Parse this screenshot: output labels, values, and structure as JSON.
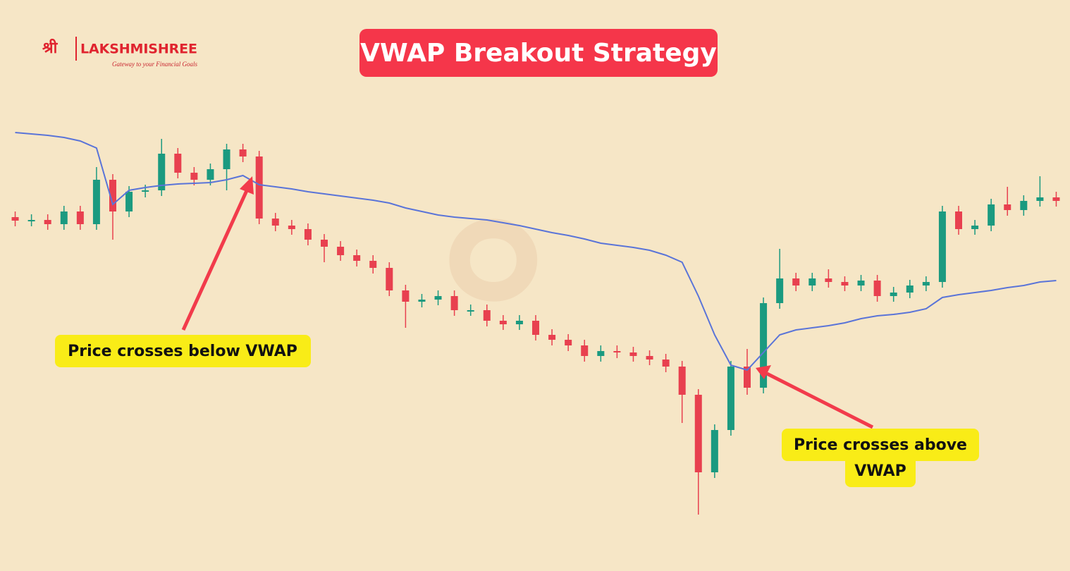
{
  "logo": {
    "mark": "श्री",
    "name": "LAKSHMISHREE",
    "tagline": "Gateway to your Financial Goals"
  },
  "chart_data": {
    "type": "candlestick",
    "title": "VWAP Breakout Strategy",
    "up_color": "#1b9a80",
    "down_color": "#e8404f",
    "ylim": [
      80,
      640
    ],
    "open": [
      502,
      497,
      498,
      492,
      510,
      492,
      555,
      510,
      538,
      540,
      592,
      565,
      555,
      570,
      598,
      588,
      500,
      490,
      485,
      470,
      460,
      448,
      440,
      430,
      398,
      382,
      385,
      390,
      370,
      370,
      355,
      350,
      355,
      335,
      328,
      320,
      305,
      312,
      310,
      305,
      300,
      290,
      250,
      140,
      200,
      290,
      260,
      380,
      415,
      405,
      415,
      410,
      405,
      412,
      390,
      395,
      405,
      410,
      510,
      485,
      490,
      520,
      512,
      525,
      530
    ],
    "high": [
      510,
      506,
      506,
      518,
      518,
      573,
      563,
      546,
      548,
      613,
      600,
      573,
      578,
      606,
      606,
      596,
      508,
      498,
      493,
      478,
      468,
      456,
      448,
      438,
      406,
      393,
      398,
      398,
      378,
      378,
      363,
      363,
      363,
      343,
      336,
      328,
      320,
      320,
      318,
      313,
      308,
      298,
      258,
      208,
      298,
      315,
      388,
      457,
      423,
      423,
      428,
      418,
      420,
      420,
      403,
      413,
      418,
      518,
      518,
      498,
      528,
      545,
      533,
      560,
      538
    ],
    "low": [
      489,
      489,
      484,
      484,
      484,
      484,
      470,
      502,
      530,
      532,
      557,
      547,
      547,
      540,
      580,
      492,
      482,
      477,
      462,
      438,
      440,
      432,
      422,
      390,
      345,
      374,
      377,
      362,
      362,
      347,
      342,
      342,
      327,
      320,
      312,
      297,
      297,
      302,
      297,
      292,
      282,
      210,
      80,
      132,
      192,
      250,
      252,
      372,
      397,
      397,
      402,
      397,
      397,
      382,
      382,
      387,
      397,
      402,
      477,
      477,
      482,
      504,
      504,
      517,
      517
    ],
    "close": [
      497,
      498,
      492,
      510,
      492,
      555,
      510,
      538,
      540,
      592,
      565,
      555,
      570,
      598,
      588,
      500,
      490,
      485,
      470,
      460,
      448,
      440,
      430,
      398,
      382,
      385,
      390,
      370,
      370,
      355,
      350,
      355,
      335,
      328,
      320,
      305,
      312,
      310,
      305,
      300,
      290,
      250,
      140,
      200,
      290,
      260,
      380,
      415,
      405,
      415,
      410,
      405,
      412,
      390,
      395,
      405,
      410,
      510,
      485,
      490,
      520,
      512,
      525,
      530,
      525
    ],
    "line": {
      "color": "#5a74d8",
      "values": [
        622,
        620,
        618,
        615,
        610,
        600,
        520,
        540,
        544,
        547,
        549,
        550,
        551,
        555,
        561,
        548,
        545,
        542,
        538,
        535,
        532,
        529,
        526,
        522,
        515,
        510,
        505,
        502,
        500,
        498,
        494,
        490,
        485,
        480,
        476,
        471,
        465,
        462,
        459,
        455,
        448,
        438,
        390,
        335,
        292,
        285,
        310,
        335,
        342,
        345,
        348,
        352,
        358,
        362,
        364,
        367,
        372,
        388,
        392,
        395,
        398,
        402,
        405,
        410,
        412
      ]
    },
    "annotations": [
      {
        "text": "Price crosses below VWAP"
      },
      {
        "lines": [
          "Price crosses above",
          "VWAP"
        ]
      }
    ]
  }
}
